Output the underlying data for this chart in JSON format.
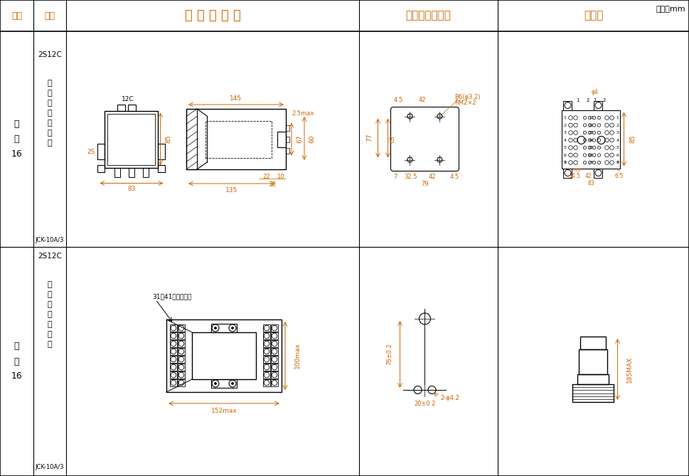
{
  "title_unit": "单位：mm",
  "header_row": [
    "图号",
    "结构",
    "外 形 尺 寸 图",
    "安装开孔尺寸图",
    "端子图"
  ],
  "bg_color": "#ffffff",
  "line_color": "#000000",
  "dim_color": "#cc6600",
  "text_color": "#000000",
  "header_text_color": "#cc6600"
}
